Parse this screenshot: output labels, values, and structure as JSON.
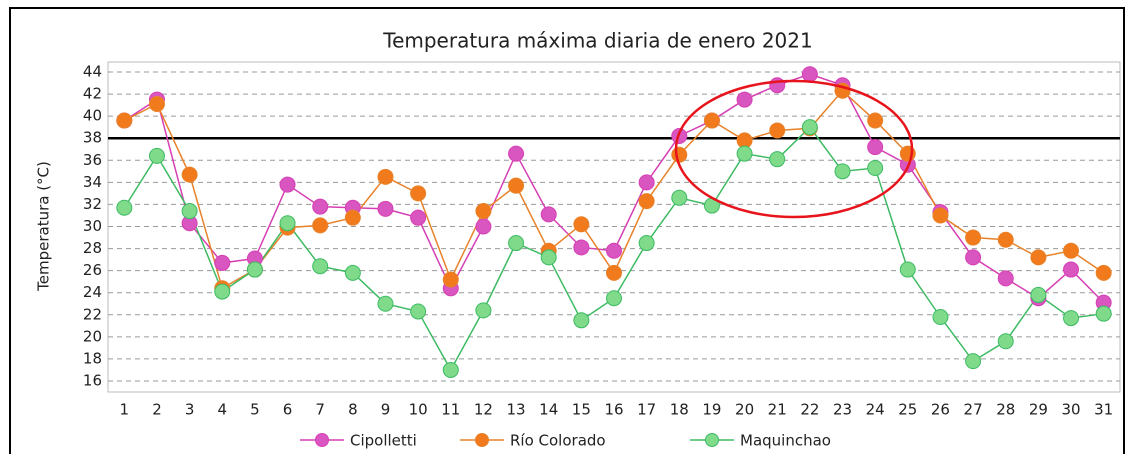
{
  "chart_data": {
    "type": "line",
    "title": "Temperatura máxima diaria de enero 2021",
    "ylabel": "Temperatura (°C)",
    "categories": [
      "1",
      "2",
      "3",
      "4",
      "5",
      "6",
      "7",
      "8",
      "9",
      "10",
      "11",
      "12",
      "13",
      "14",
      "15",
      "16",
      "17",
      "18",
      "19",
      "20",
      "21",
      "22",
      "23",
      "24",
      "25",
      "26",
      "27",
      "28",
      "29",
      "30",
      "31"
    ],
    "series": [
      {
        "name": "Cipolletti",
        "color": "#d63fb4",
        "marker_color": "#d955c0",
        "values": [
          39.6,
          41.5,
          30.3,
          26.7,
          27.1,
          33.8,
          31.8,
          31.7,
          31.6,
          30.8,
          24.4,
          30.0,
          36.6,
          31.1,
          28.1,
          27.8,
          34.0,
          38.2,
          39.6,
          41.5,
          42.8,
          43.8,
          42.8,
          37.2,
          35.6,
          31.3,
          27.2,
          25.3,
          23.5,
          26.1,
          23.1
        ]
      },
      {
        "name": "Río Colorado",
        "color": "#e8822a",
        "marker_color": "#f07a1c",
        "values": [
          39.6,
          41.1,
          34.7,
          24.4,
          26.1,
          29.9,
          30.1,
          30.8,
          34.5,
          33.0,
          25.2,
          31.4,
          33.7,
          27.8,
          30.2,
          25.8,
          32.3,
          36.5,
          39.6,
          37.8,
          38.7,
          38.9,
          42.3,
          39.6,
          36.6,
          31.0,
          29.0,
          28.8,
          27.2,
          27.8,
          25.8
        ]
      },
      {
        "name": "Maquinchao",
        "color": "#3dbb63",
        "marker_color": "#7fda8a",
        "values": [
          31.7,
          36.4,
          31.4,
          24.1,
          26.1,
          30.3,
          26.4,
          25.8,
          23.0,
          22.3,
          17.0,
          22.4,
          28.5,
          27.2,
          21.5,
          23.5,
          28.5,
          32.6,
          31.9,
          36.6,
          36.1,
          39.0,
          35.0,
          35.3,
          26.1,
          21.8,
          17.8,
          19.6,
          23.8,
          21.7,
          22.1
        ]
      }
    ],
    "ylim": [
      16,
      44
    ],
    "yticks": [
      16,
      18,
      20,
      22,
      24,
      26,
      28,
      30,
      32,
      34,
      36,
      38,
      40,
      42,
      44
    ],
    "reference_line": 38,
    "grid": true,
    "legend": "bottom"
  }
}
